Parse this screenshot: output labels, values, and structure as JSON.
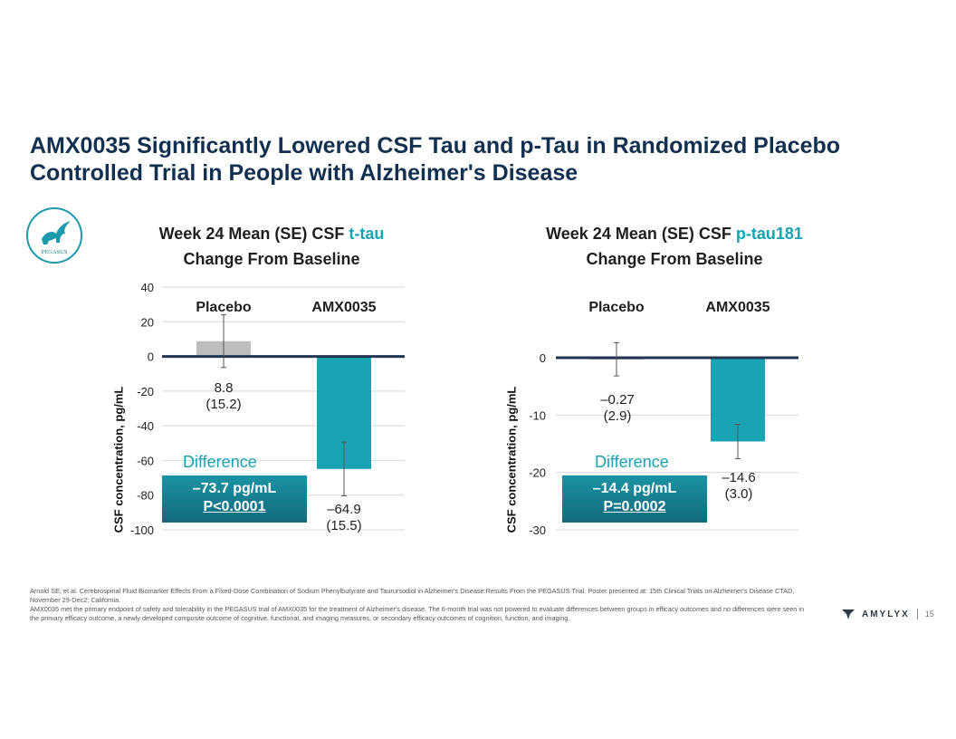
{
  "slide": {
    "title_line1": "AMX0035 Significantly Lowered CSF Tau and p-Tau in Randomized Placebo",
    "title_line2": "Controlled Trial in People with Alzheimer's Disease",
    "logo_text": "PEGASUS",
    "brand": "AMYLYX",
    "page_number": "15"
  },
  "footnote": {
    "line1": "Arnold SE, et al. Cerebrospinal Fluid Biomarker Effects From a Fixed-Dose Combination of Sodium Phenylbutyrate and Taurursodiol in Alzheimer's Disease:Results From the PEGASUS Trial.  Poster presented at: 15th Clinical Trials on Alzheimer's Disease CTAD, November 29-Dec2; California.",
    "line2": "AMX0035 met the primary endpoint of safety and tolerability in the PEGASUS trial of AMX0035 for the treatment of Alzheimer's disease. The 6-month trial was not powered to evaluate differences between groups in efficacy outcomes and no differences were seen in the primary efficacy outcome, a newly developed composite outcome of cognitive, functional, and imaging measures, or secondary efficacy outcomes of cognition, function, and imaging."
  },
  "colors": {
    "placebo": "#bdbdbd",
    "amx": "#1aa3b3",
    "axis": "#1f3550",
    "grid": "#d9d9d9"
  },
  "chart_data": [
    {
      "type": "bar",
      "title_prefix": "Week 24 Mean (SE) CSF ",
      "title_highlight": "t-tau",
      "title_line2": "Change From Baseline",
      "ylabel": "CSF concentration, pg/mL",
      "ylim": [
        -100,
        40
      ],
      "yticks": [
        40,
        20,
        0,
        -20,
        -40,
        -60,
        -80,
        -100
      ],
      "categories": [
        "Placebo",
        "AMX0035"
      ],
      "values": [
        8.8,
        -64.9
      ],
      "se": [
        15.2,
        15.5
      ],
      "value_labels": [
        "8.8",
        "–64.9"
      ],
      "se_labels": [
        "(15.2)",
        "(15.5)"
      ],
      "difference_label": "Difference",
      "difference_value": "–73.7 pg/mL",
      "p_value": "P<0.0001"
    },
    {
      "type": "bar",
      "title_prefix": "Week 24 Mean (SE) CSF ",
      "title_highlight": "p-tau181",
      "title_line2": "Change From Baseline",
      "ylabel": "CSF concentration, pg/mL",
      "ylim": [
        -30,
        0
      ],
      "yticks": [
        0,
        -10,
        -20,
        -30
      ],
      "categories": [
        "Placebo",
        "AMX0035"
      ],
      "values": [
        -0.27,
        -14.6
      ],
      "se": [
        2.9,
        3.0
      ],
      "value_labels": [
        "–0.27",
        "–14.6"
      ],
      "se_labels": [
        "(2.9)",
        "(3.0)"
      ],
      "difference_label": "Difference",
      "difference_value": "–14.4 pg/mL",
      "p_value": "P=0.0002"
    }
  ]
}
